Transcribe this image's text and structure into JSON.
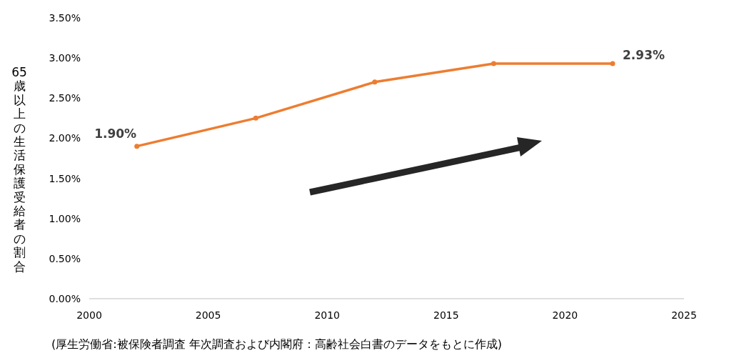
{
  "chart_data": {
    "type": "line",
    "ylabel": "65歳以上の生活保護受給者の割合",
    "x": [
      2002,
      2007,
      2012,
      2017,
      2022
    ],
    "series": [
      {
        "color": "#ed7d31",
        "values": [
          0.019,
          0.0225,
          0.027,
          0.0293,
          0.0293
        ],
        "value_labels": [
          "1.90%",
          null,
          null,
          null,
          "2.93%"
        ]
      }
    ],
    "xlim": [
      2000,
      2025
    ],
    "xticks": [
      2000,
      2005,
      2010,
      2015,
      2020,
      2025
    ],
    "ylim": [
      0,
      0.035
    ],
    "yticks": [
      {
        "value": 0,
        "label": "0.00%"
      },
      {
        "value": 0.005,
        "label": "0.50%"
      },
      {
        "value": 0.01,
        "label": "1.00%"
      },
      {
        "value": 0.015,
        "label": "1.50%"
      },
      {
        "value": 0.02,
        "label": "2.00%"
      },
      {
        "value": 0.025,
        "label": "2.50%"
      },
      {
        "value": 0.03,
        "label": "3.00%"
      },
      {
        "value": 0.035,
        "label": "3.50%"
      }
    ],
    "marker": "circle",
    "line_style": "solid",
    "grid": false,
    "annotations": [
      "(厚生労働省:被保険者調査 年次調査および内閣府：高齢社会白書のデータをもとに作成)"
    ]
  }
}
